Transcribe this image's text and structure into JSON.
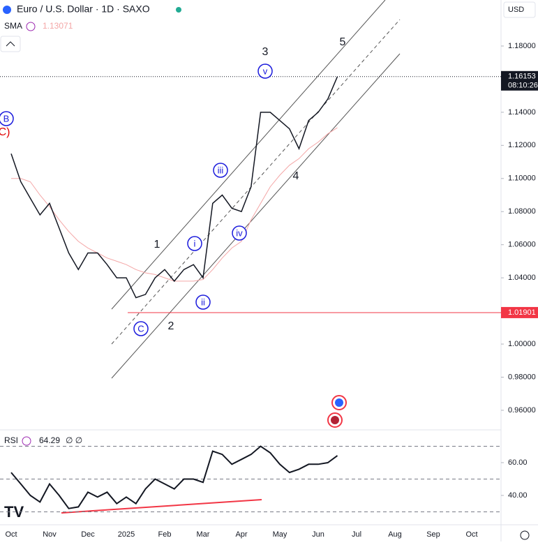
{
  "header": {
    "title": "Euro / U.S. Dollar · 1D · SAXO",
    "sma_label": "SMA",
    "sma_value": "1.13071",
    "currency": "USD",
    "rsi_label": "RSI",
    "rsi_value": "64.29",
    "countdown": "08:10:26"
  },
  "chart_data": {
    "type": "line",
    "categories": [
      "Oct",
      null,
      null,
      null,
      "Nov",
      null,
      null,
      null,
      "Dec",
      null,
      null,
      null,
      "2025",
      null,
      null,
      null,
      "Feb",
      null,
      null,
      null,
      "Mar",
      null,
      null,
      null,
      "Apr",
      null,
      null,
      null,
      "May",
      null,
      null,
      null,
      "Jun",
      null,
      null,
      null,
      "Jul",
      null,
      null,
      null,
      "Aug",
      null,
      null,
      null,
      "Sep",
      null,
      null,
      null,
      "Oct"
    ],
    "series": [
      {
        "name": "Euro / U.S. Dollar",
        "color": "#131722",
        "values": [
          1.115,
          1.098,
          1.088,
          1.078,
          1.085,
          1.07,
          1.055,
          1.045,
          1.055,
          1.055,
          1.048,
          1.04,
          1.04,
          1.028,
          1.03,
          1.04,
          1.045,
          1.038,
          1.045,
          1.048,
          1.04,
          1.085,
          1.09,
          1.082,
          1.08,
          1.095,
          1.14,
          1.14,
          1.135,
          1.13,
          1.118,
          1.135,
          1.14,
          1.148,
          1.16153,
          null,
          null,
          null,
          null,
          null,
          null,
          null,
          null,
          null,
          null,
          null,
          null,
          null,
          null
        ]
      },
      {
        "name": "SMA",
        "color": "#f4a6a6",
        "values": [
          1.1,
          1.1,
          1.098,
          1.09,
          1.083,
          1.075,
          1.068,
          1.062,
          1.058,
          1.055,
          1.052,
          1.05,
          1.048,
          1.045,
          1.043,
          1.042,
          1.04,
          1.038,
          1.038,
          1.038,
          1.039,
          1.045,
          1.052,
          1.058,
          1.062,
          1.075,
          1.085,
          1.095,
          1.102,
          1.108,
          1.112,
          1.118,
          1.122,
          1.127,
          1.13071,
          null,
          null,
          null,
          null,
          null,
          null,
          null,
          null,
          null,
          null,
          null,
          null,
          null,
          null
        ]
      }
    ],
    "ylim": [
      0.9486,
      1.2078
    ],
    "yticks": [
      {
        "value": 1.18,
        "label": "1.18000"
      },
      {
        "value": 1.14,
        "label": "1.14000"
      },
      {
        "value": 1.12,
        "label": "1.12000"
      },
      {
        "value": 1.1,
        "label": "1.10000"
      },
      {
        "value": 1.08,
        "label": "1.08000"
      },
      {
        "value": 1.06,
        "label": "1.06000"
      },
      {
        "value": 1.04,
        "label": "1.04000"
      },
      {
        "value": 1.0,
        "label": "1.00000"
      },
      {
        "value": 0.98,
        "label": "0.98000"
      },
      {
        "value": 0.96,
        "label": "0.96000"
      }
    ],
    "last_price": 1.16153,
    "hline": 1.01901,
    "annotations": [
      "3",
      "5",
      "1",
      "2",
      "4",
      "B",
      "C)",
      "v",
      "iii",
      "i",
      "ii",
      "iv",
      "C"
    ],
    "rsi": {
      "values": [
        54,
        47,
        40,
        36,
        47,
        40,
        32,
        33,
        42,
        39,
        42,
        35,
        39,
        35,
        44,
        50,
        47,
        44,
        50,
        50,
        48,
        67,
        65,
        59,
        62,
        65,
        70,
        66,
        59,
        54,
        56,
        59,
        59,
        60,
        64.29,
        null,
        null,
        null,
        null,
        null,
        null,
        null,
        null,
        null,
        null,
        null,
        null,
        null,
        null
      ],
      "color": "#131722",
      "ylim": [
        22.1,
        78.3
      ],
      "yticks": [
        {
          "value": 60,
          "label": "60.00"
        },
        {
          "value": 40,
          "label": "40.00"
        }
      ],
      "levels": [
        70,
        50,
        30
      ]
    }
  }
}
